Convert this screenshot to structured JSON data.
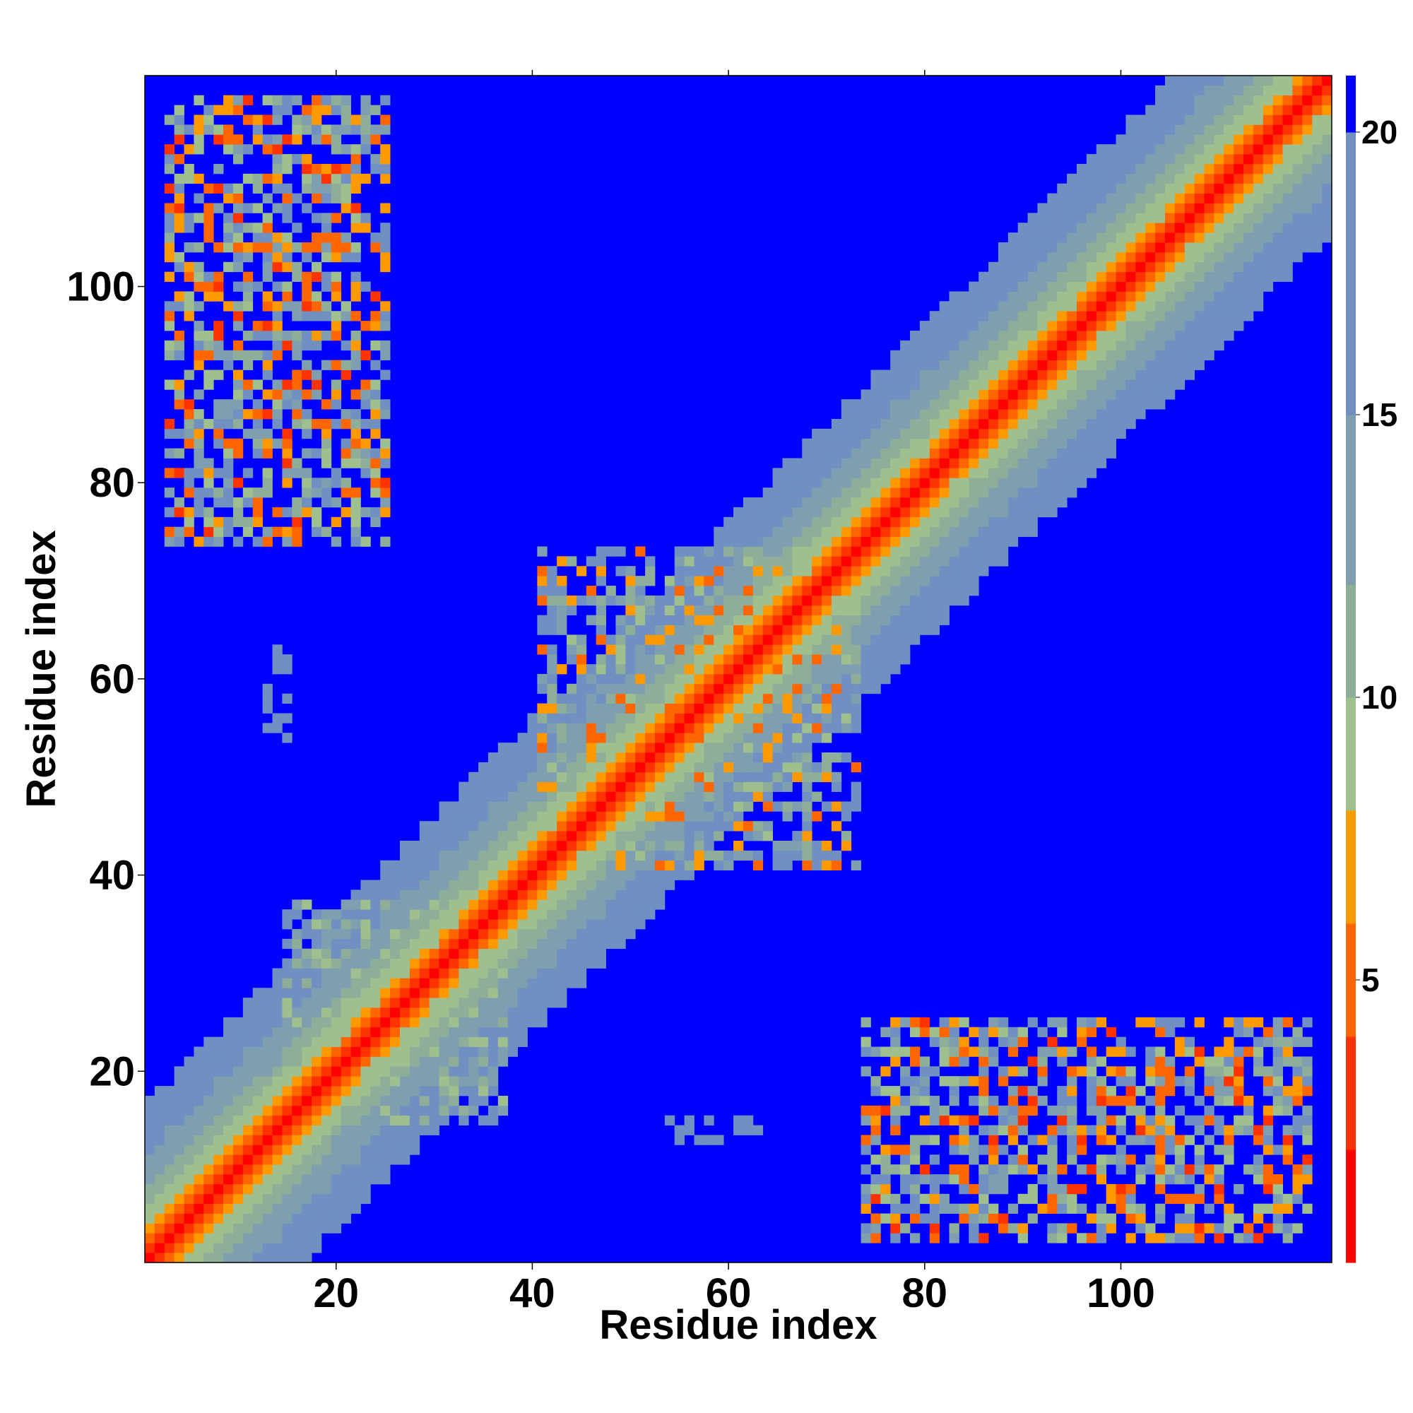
{
  "chart_data": {
    "type": "heatmap",
    "title": "",
    "xlabel": "Residue index",
    "ylabel": "Residue index",
    "n_residues": 121,
    "xlim": [
      1,
      121
    ],
    "ylim": [
      1,
      121
    ],
    "x_ticks": [
      20,
      40,
      60,
      80,
      100
    ],
    "y_ticks": [
      20,
      40,
      60,
      80,
      100
    ],
    "colorbar": {
      "ticks": [
        5,
        10,
        15,
        20
      ],
      "range": [
        0,
        21
      ],
      "levels": [
        {
          "max": 2,
          "color": "#ff0000"
        },
        {
          "max": 4,
          "color": "#ff3300"
        },
        {
          "max": 6,
          "color": "#ff6600"
        },
        {
          "max": 8,
          "color": "#ff9900"
        },
        {
          "max": 10,
          "color": "#9fbf8f"
        },
        {
          "max": 12,
          "color": "#8fae9a"
        },
        {
          "max": 15,
          "color": "#7f9fb0"
        },
        {
          "max": 20,
          "color": "#6f90c0"
        },
        {
          "max": 21,
          "color": "#0000ff"
        }
      ]
    },
    "structure": {
      "diagonal": "distance grows with |i-j|; contact values below 20 within ~16 residues of the diagonal",
      "off_diagonal_contact_regions": [
        {
          "i_range": [
            2,
            24
          ],
          "j_range": [
            73,
            118
          ],
          "min_value": 3
        },
        {
          "i_range": [
            73,
            118
          ],
          "j_range": [
            2,
            24
          ],
          "min_value": 3
        },
        {
          "i_range": [
            12,
            14
          ],
          "j_range": [
            53,
            62
          ],
          "min_value": 15
        },
        {
          "i_range": [
            14,
            36
          ],
          "j_range": [
            14,
            36
          ],
          "min_value": 8
        },
        {
          "i_range": [
            40,
            72
          ],
          "j_range": [
            40,
            72
          ],
          "min_value": 5
        }
      ]
    }
  }
}
